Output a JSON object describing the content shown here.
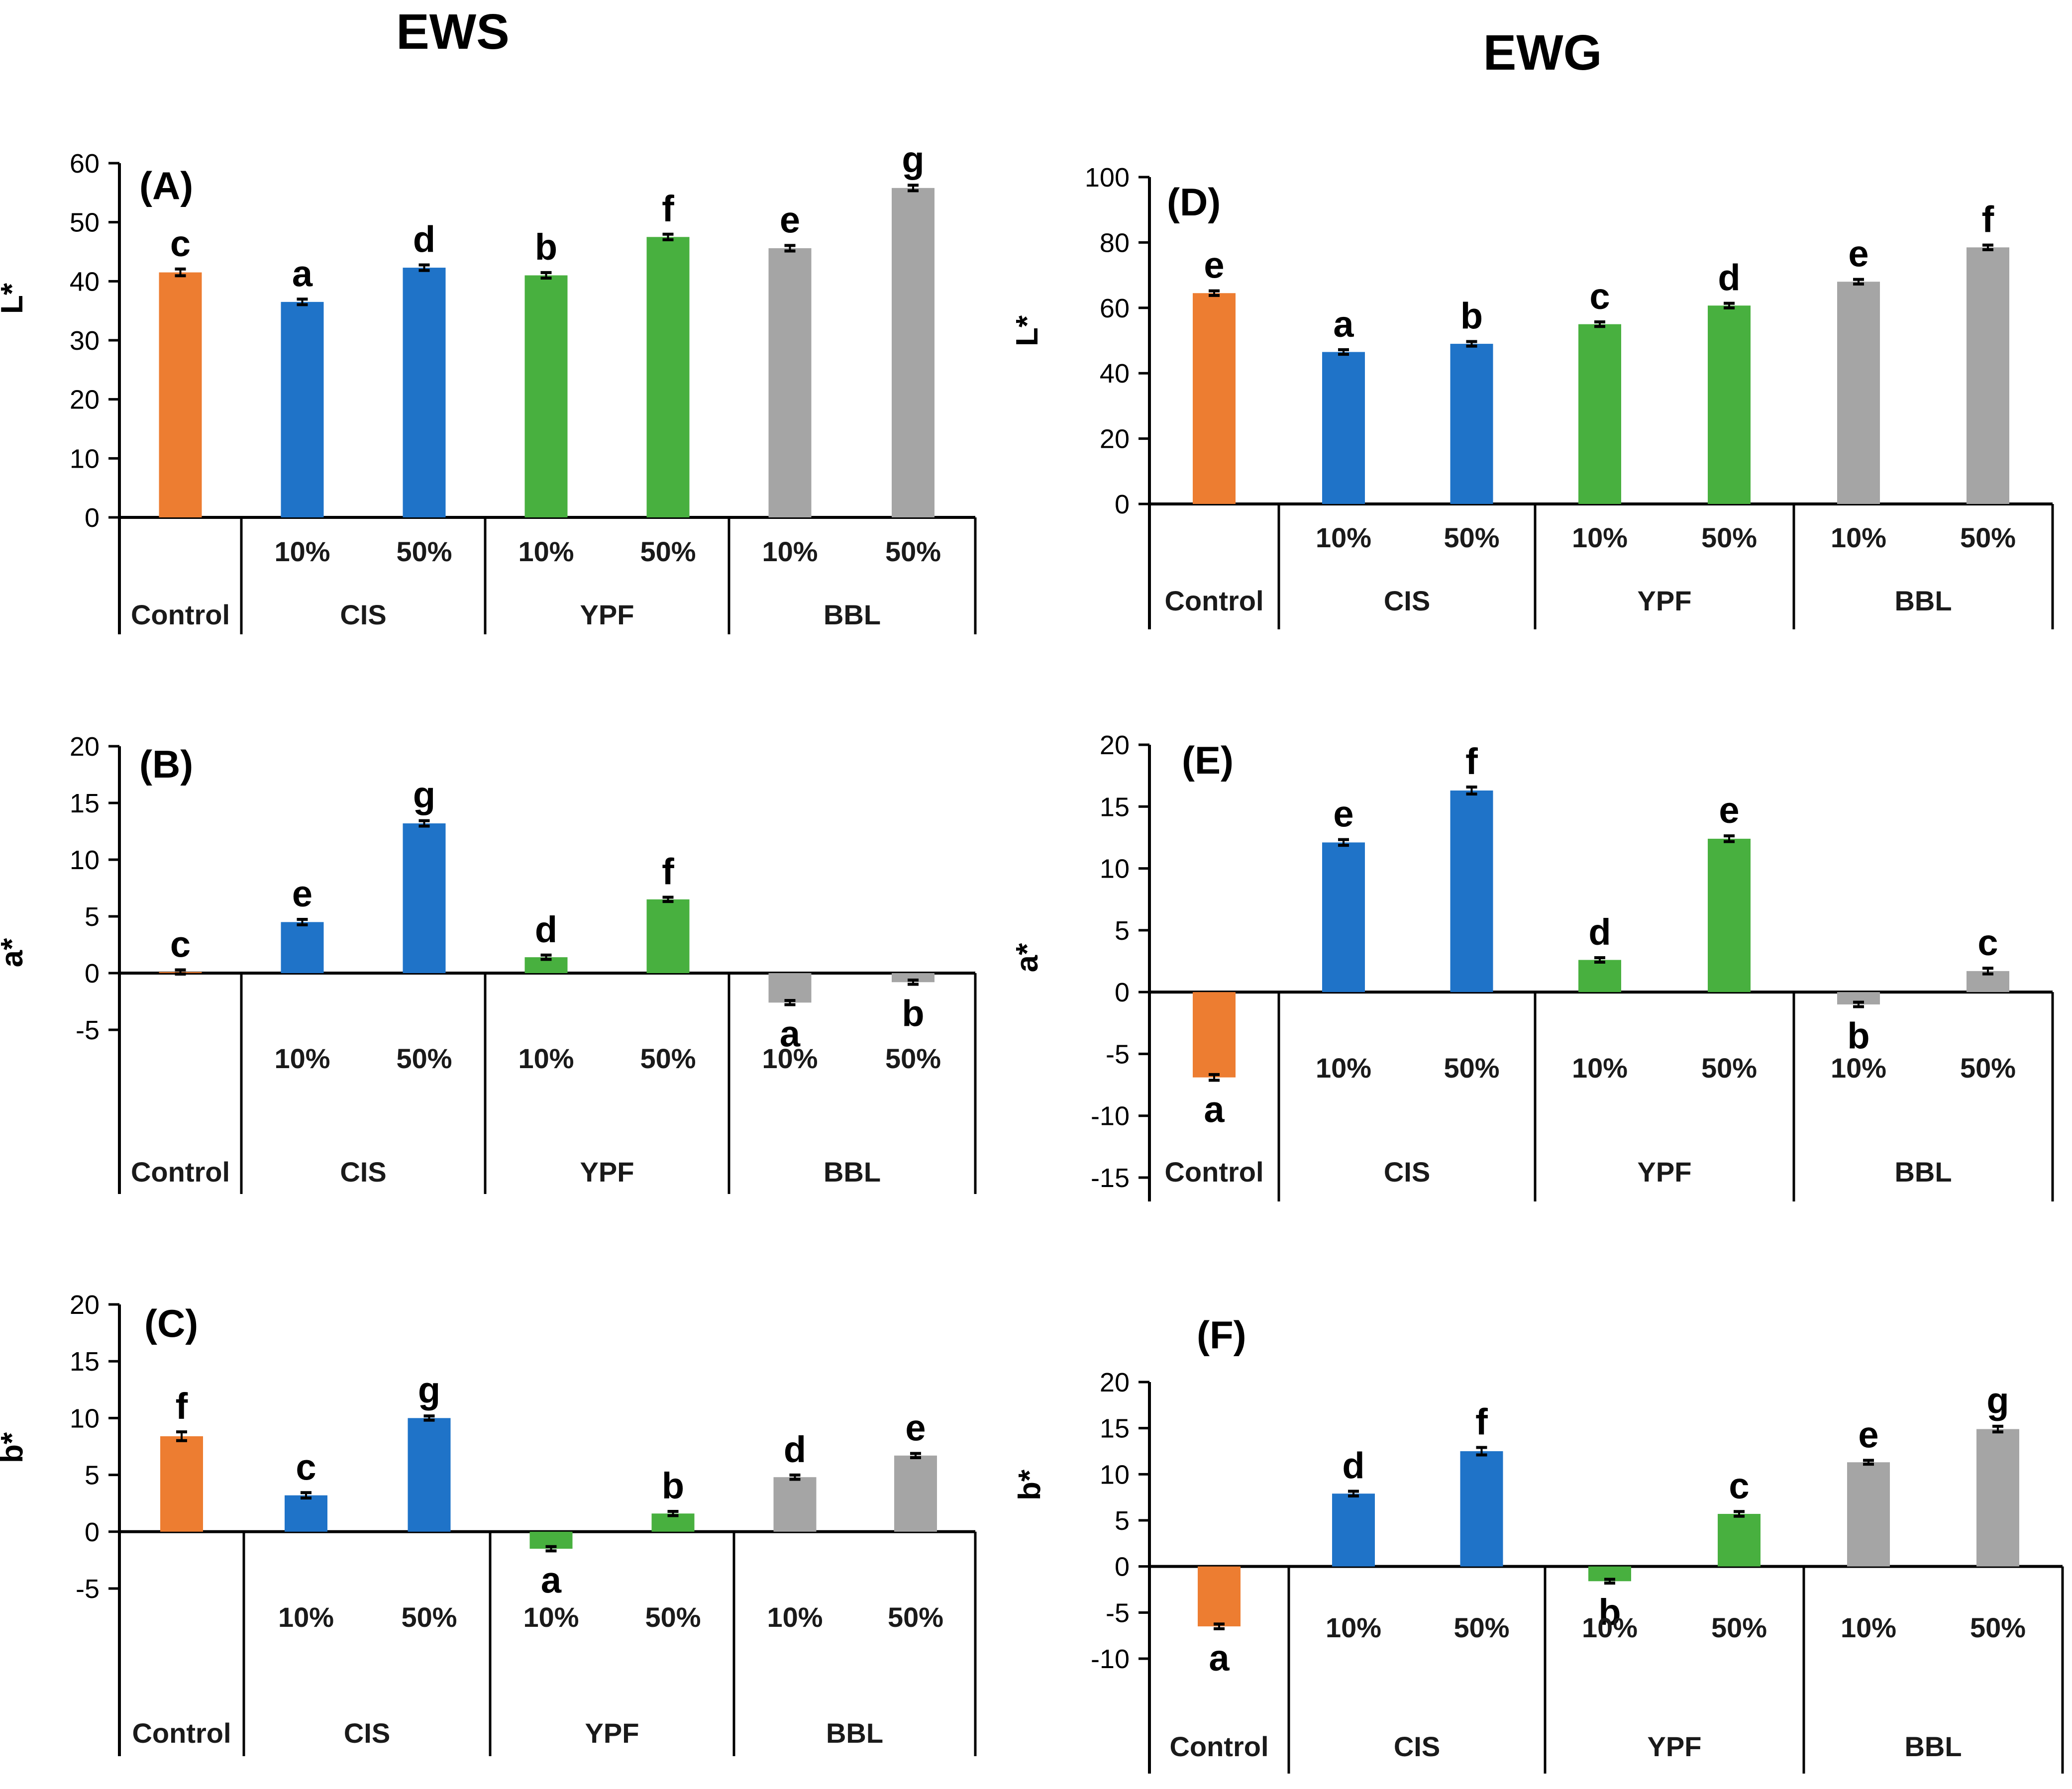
{
  "figure": {
    "column_titles": [
      "EWS",
      "EWG"
    ],
    "group_labels": [
      "Control",
      "CIS",
      "YPF",
      "BBL"
    ],
    "sub_labels": [
      "10%",
      "50%",
      "10%",
      "50%",
      "10%",
      "50%"
    ],
    "colors": {
      "control": "#ED7D31",
      "cis": "#1F73C8",
      "ypf": "#48B03F",
      "bbl": "#A5A5A5",
      "error_bar": "#000000"
    }
  },
  "chart_data": [
    {
      "panel": "(A)",
      "column": "EWS",
      "type": "bar",
      "ylabel": "L*",
      "ylim": [
        0,
        60
      ],
      "yticks": [
        0,
        10,
        20,
        30,
        40,
        50,
        60
      ],
      "categories": [
        "Control",
        "CIS 10%",
        "CIS 50%",
        "YPF 10%",
        "YPF 50%",
        "BBL 10%",
        "BBL 50%"
      ],
      "values": [
        41.5,
        36.5,
        42.3,
        41.0,
        47.5,
        45.6,
        55.8
      ],
      "errors": [
        0.4,
        0.3,
        0.3,
        0.3,
        0.3,
        0.3,
        0.3
      ],
      "letters": [
        "c",
        "a",
        "d",
        "b",
        "f",
        "e",
        "g"
      ]
    },
    {
      "panel": "(B)",
      "column": "EWS",
      "type": "bar",
      "ylabel": "a*",
      "ylim": [
        -5,
        20
      ],
      "yticks": [
        -5,
        0,
        5,
        10,
        15,
        20
      ],
      "categories": [
        "Control",
        "CIS 10%",
        "CIS 50%",
        "YPF 10%",
        "YPF 50%",
        "BBL 10%",
        "BBL 50%"
      ],
      "values": [
        0.1,
        4.5,
        13.2,
        1.4,
        6.5,
        -2.6,
        -0.8
      ],
      "errors": [
        0.1,
        0.15,
        0.15,
        0.1,
        0.1,
        0.1,
        0.1
      ],
      "letters": [
        "c",
        "e",
        "g",
        "d",
        "f",
        "a",
        "b"
      ]
    },
    {
      "panel": "(C)",
      "column": "EWS",
      "type": "bar",
      "ylabel": "b*",
      "ylim": [
        -5,
        20
      ],
      "yticks": [
        -5,
        0,
        5,
        10,
        15,
        20
      ],
      "categories": [
        "Control",
        "CIS 10%",
        "CIS 50%",
        "YPF 10%",
        "YPF 50%",
        "BBL 10%",
        "BBL 50%"
      ],
      "values": [
        8.4,
        3.2,
        10.0,
        -1.5,
        1.6,
        4.8,
        6.7
      ],
      "errors": [
        0.3,
        0.15,
        0.1,
        0.1,
        0.1,
        0.1,
        0.1
      ],
      "letters": [
        "f",
        "c",
        "g",
        "a",
        "b",
        "d",
        "e"
      ]
    },
    {
      "panel": "(D)",
      "column": "EWG",
      "type": "bar",
      "ylabel": "L*",
      "ylim": [
        0,
        100
      ],
      "yticks": [
        0,
        20,
        40,
        60,
        80,
        100
      ],
      "categories": [
        "Control",
        "CIS 10%",
        "CIS 50%",
        "YPF 10%",
        "YPF 50%",
        "BBL 10%",
        "BBL 50%"
      ],
      "values": [
        64.5,
        46.5,
        49.0,
        55.0,
        60.7,
        68.0,
        78.5
      ],
      "errors": [
        0.4,
        0.4,
        0.4,
        0.4,
        0.4,
        0.4,
        0.4
      ],
      "letters": [
        "e",
        "a",
        "b",
        "c",
        "d",
        "e",
        "f"
      ]
    },
    {
      "panel": "(E)",
      "column": "EWG",
      "type": "bar",
      "ylabel": "a*",
      "ylim": [
        -15,
        20
      ],
      "yticks": [
        -15,
        -10,
        -5,
        0,
        5,
        10,
        15,
        20
      ],
      "categories": [
        "Control",
        "CIS 10%",
        "CIS 50%",
        "YPF 10%",
        "YPF 50%",
        "BBL 10%",
        "BBL 50%"
      ],
      "values": [
        -6.9,
        12.1,
        16.3,
        2.6,
        12.4,
        -1.0,
        1.7
      ],
      "errors": [
        0.15,
        0.15,
        0.2,
        0.1,
        0.15,
        0.1,
        0.15
      ],
      "letters": [
        "a",
        "e",
        "f",
        "d",
        "e",
        "b",
        "c"
      ]
    },
    {
      "panel": "(F)",
      "column": "EWG",
      "type": "bar",
      "ylabel": "b*",
      "ylim": [
        -10,
        20
      ],
      "yticks": [
        -10,
        -5,
        0,
        5,
        10,
        15,
        20
      ],
      "categories": [
        "Control",
        "CIS 10%",
        "CIS 50%",
        "YPF 10%",
        "YPF 50%",
        "BBL 10%",
        "BBL 50%"
      ],
      "values": [
        -6.5,
        7.9,
        12.5,
        -1.6,
        5.7,
        11.3,
        14.9
      ],
      "errors": [
        0.15,
        0.15,
        0.3,
        0.1,
        0.15,
        0.1,
        0.2
      ],
      "letters": [
        "a",
        "d",
        "f",
        "b",
        "c",
        "e",
        "g"
      ]
    }
  ]
}
